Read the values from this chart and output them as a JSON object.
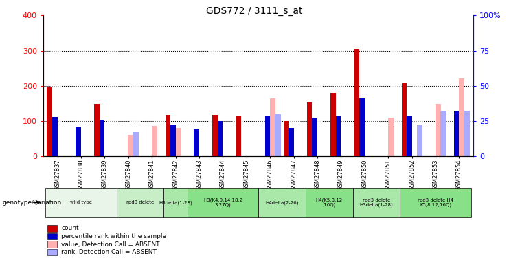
{
  "title": "GDS772 / 3111_s_at",
  "samples": [
    "GSM27837",
    "GSM27838",
    "GSM27839",
    "GSM27840",
    "GSM27841",
    "GSM27842",
    "GSM27843",
    "GSM27844",
    "GSM27845",
    "GSM27846",
    "GSM27847",
    "GSM27848",
    "GSM27849",
    "GSM27850",
    "GSM27851",
    "GSM27852",
    "GSM27853",
    "GSM27854"
  ],
  "count_values": [
    195,
    0,
    148,
    0,
    0,
    118,
    0,
    117,
    115,
    0,
    100,
    155,
    180,
    305,
    0,
    210,
    0,
    0
  ],
  "percentile_values": [
    28,
    21,
    26,
    0,
    0,
    22,
    19,
    25,
    0,
    29,
    20,
    27,
    29,
    41,
    0,
    29,
    0,
    32
  ],
  "absent_value_values": [
    0,
    0,
    0,
    60,
    85,
    80,
    0,
    0,
    0,
    165,
    0,
    0,
    0,
    0,
    110,
    0,
    148,
    220
  ],
  "absent_rank_values": [
    0,
    0,
    0,
    17,
    0,
    0,
    0,
    0,
    0,
    30,
    0,
    0,
    0,
    0,
    0,
    22,
    32,
    32
  ],
  "genotype_groups": [
    {
      "label": "wild type",
      "start": 0,
      "end": 3,
      "color": "#e8f5e8"
    },
    {
      "label": "rpd3 delete",
      "start": 3,
      "end": 5,
      "color": "#c8eec8"
    },
    {
      "label": "H3delta(1-28)",
      "start": 5,
      "end": 6,
      "color": "#aae8aa"
    },
    {
      "label": "H3(K4,9,14,18,2\n3,27Q)",
      "start": 6,
      "end": 9,
      "color": "#88e088"
    },
    {
      "label": "H4delta(2-26)",
      "start": 9,
      "end": 11,
      "color": "#aae8aa"
    },
    {
      "label": "H4(K5,8,12\n,16Q)",
      "start": 11,
      "end": 13,
      "color": "#88e088"
    },
    {
      "label": "rpd3 delete\nH3delta(1-28)",
      "start": 13,
      "end": 15,
      "color": "#aae8aa"
    },
    {
      "label": "rpd3 delete H4\nK5,8,12,16Q)",
      "start": 15,
      "end": 18,
      "color": "#88e088"
    }
  ],
  "count_color": "#cc0000",
  "percentile_color": "#0000cc",
  "absent_value_color": "#ffb0b0",
  "absent_rank_color": "#aaaaff",
  "bar_width": 0.22,
  "background_color": "#ffffff"
}
